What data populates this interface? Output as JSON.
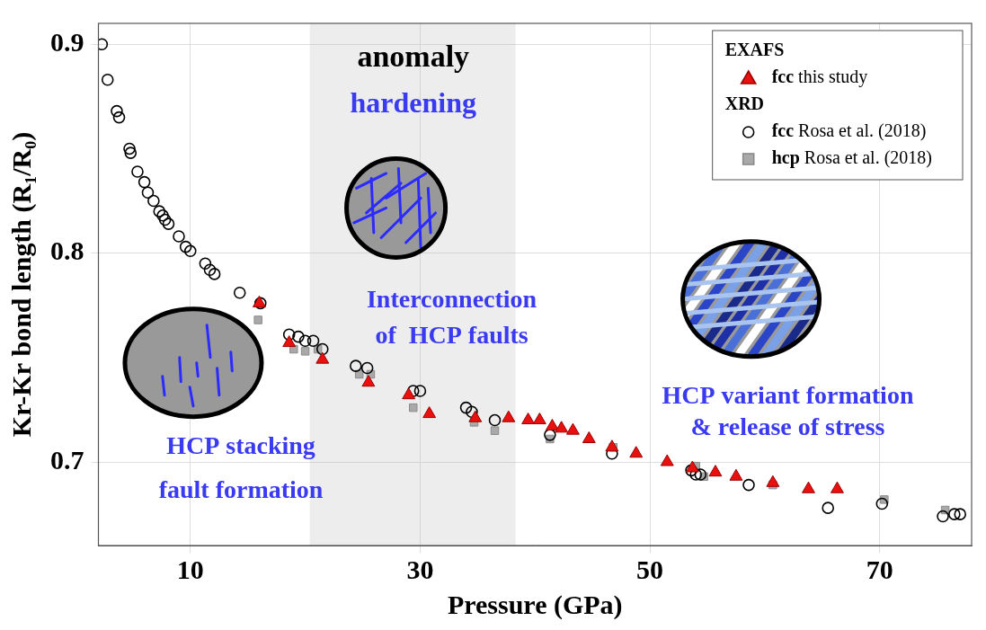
{
  "chart_data": {
    "type": "scatter",
    "x_label": "Pressure (GPa)",
    "y_label": "Kr-Kr bond length (R₁/R₀)",
    "xlim": [
      2,
      78
    ],
    "xticks": [
      10,
      30,
      50,
      70
    ],
    "ylim": [
      0.66,
      0.91
    ],
    "yticks": [
      0.7,
      0.8,
      0.9
    ],
    "grid": true,
    "legend": "upper right",
    "shaded_xrange": [
      20.4,
      38.3
    ],
    "annotations": [
      {
        "lines": [
          "anomaly"
        ],
        "color": "#000000"
      },
      {
        "lines": [
          "hardening"
        ],
        "color": "#3a3af2"
      },
      {
        "lines": [
          "Interconnection",
          "of  HCP faults"
        ],
        "color": "#3a3af2"
      },
      {
        "lines": [
          "HCP stacking",
          "fault formation"
        ],
        "color": "#3a3af2"
      },
      {
        "lines": [
          "HCP variant formation",
          "& release of stress"
        ],
        "color": "#3a3af2"
      }
    ],
    "series": [
      {
        "name": "fcc this study",
        "group": "EXAFS",
        "color": "#e8110f",
        "marker": "triangle",
        "x": [
          16.0,
          18.6,
          21.5,
          25.5,
          29.0,
          30.8,
          34.8,
          37.7,
          39.4,
          40.4,
          41.5,
          42.3,
          43.3,
          44.7,
          46.7,
          48.8,
          51.5,
          53.7,
          55.7,
          57.5,
          60.7,
          63.8,
          66.3
        ],
        "values": [
          0.776,
          0.757,
          0.749,
          0.738,
          0.732,
          0.723,
          0.721,
          0.721,
          0.72,
          0.72,
          0.717,
          0.716,
          0.715,
          0.711,
          0.707,
          0.704,
          0.7,
          0.697,
          0.695,
          0.693,
          0.69,
          0.687,
          0.687
        ]
      },
      {
        "name": "fcc Rosa et al. (2018)",
        "group": "XRD",
        "color": "#000000",
        "marker": "ring",
        "x": [
          2.3,
          2.8,
          3.6,
          3.8,
          4.7,
          4.8,
          5.4,
          6.0,
          6.3,
          6.8,
          7.3,
          7.6,
          7.8,
          8.1,
          9.0,
          9.6,
          10.0,
          11.3,
          11.7,
          12.1,
          14.3,
          16.1,
          18.6,
          19.4,
          20.0,
          20.7,
          21.5,
          24.4,
          25.4,
          29.4,
          30.0,
          34.0,
          34.5,
          36.5,
          41.3,
          46.7,
          53.6,
          54.0,
          54.4,
          58.6,
          65.5,
          70.2,
          75.5,
          76.5,
          77.0
        ],
        "values": [
          0.9,
          0.883,
          0.868,
          0.865,
          0.85,
          0.848,
          0.839,
          0.834,
          0.829,
          0.825,
          0.82,
          0.818,
          0.816,
          0.814,
          0.808,
          0.803,
          0.801,
          0.795,
          0.792,
          0.79,
          0.781,
          0.776,
          0.761,
          0.76,
          0.758,
          0.758,
          0.754,
          0.746,
          0.745,
          0.734,
          0.734,
          0.726,
          0.724,
          0.72,
          0.713,
          0.704,
          0.696,
          0.694,
          0.694,
          0.689,
          0.678,
          0.68,
          0.674,
          0.675,
          0.675
        ]
      },
      {
        "name": "hcp Rosa et al. (2018)",
        "group": "XRD",
        "color": "#a9a9a9",
        "marker": "square",
        "x": [
          15.9,
          19.0,
          20.0,
          21.1,
          24.7,
          25.7,
          29.4,
          34.7,
          36.5,
          41.3,
          46.8,
          54.0,
          54.7,
          60.7,
          70.4,
          75.7
        ],
        "values": [
          0.768,
          0.754,
          0.753,
          0.754,
          0.742,
          0.742,
          0.726,
          0.719,
          0.715,
          0.711,
          0.707,
          0.698,
          0.693,
          0.689,
          0.682,
          0.677
        ]
      }
    ]
  }
}
